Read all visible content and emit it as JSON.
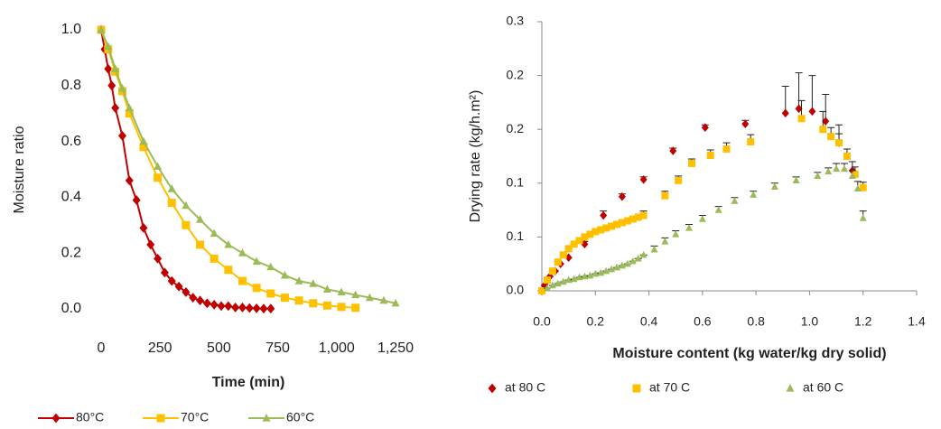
{
  "chart_data": [
    {
      "type": "line",
      "x_label": "Time (min)",
      "y_label": "Moisture ratio",
      "legend": "bottom",
      "xlim": [
        0,
        1250
      ],
      "ylim": [
        0,
        1.0
      ],
      "xticks": [
        0,
        250,
        500,
        750,
        {
          "value": 1000,
          "label": "1,000"
        },
        {
          "value": 1250,
          "label": "1,250"
        }
      ],
      "yticks": [
        {
          "value": 0,
          "label": "0.0"
        },
        0.2,
        0.4,
        0.6,
        0.8,
        {
          "value": 1,
          "label": "1.0"
        }
      ],
      "series": [
        {
          "name": "80°C",
          "color": "#c00000",
          "marker": "diamond",
          "x": [
            0,
            15,
            30,
            45,
            60,
            90,
            120,
            150,
            180,
            210,
            240,
            270,
            300,
            330,
            360,
            390,
            420,
            450,
            480,
            510,
            540,
            570,
            600,
            630,
            660,
            690,
            720
          ],
          "values": [
            1.0,
            0.93,
            0.86,
            0.8,
            0.72,
            0.62,
            0.46,
            0.39,
            0.29,
            0.23,
            0.18,
            0.13,
            0.1,
            0.08,
            0.06,
            0.04,
            0.03,
            0.02,
            0.015,
            0.01,
            0.01,
            0.005,
            0.005,
            0.003,
            0.002,
            0.001,
            0.001
          ]
        },
        {
          "name": "70°C",
          "color": "#ffc000",
          "marker": "square",
          "x": [
            0,
            30,
            60,
            90,
            120,
            180,
            240,
            300,
            360,
            420,
            480,
            540,
            600,
            660,
            720,
            780,
            840,
            900,
            960,
            1020,
            1080
          ],
          "values": [
            1.0,
            0.93,
            0.85,
            0.78,
            0.7,
            0.58,
            0.47,
            0.38,
            0.3,
            0.23,
            0.18,
            0.14,
            0.1,
            0.075,
            0.055,
            0.04,
            0.03,
            0.02,
            0.012,
            0.007,
            0.004
          ]
        },
        {
          "name": "60°C",
          "color": "#9bbb59",
          "marker": "triangle",
          "x": [
            0,
            30,
            60,
            90,
            120,
            180,
            240,
            300,
            360,
            420,
            480,
            540,
            600,
            660,
            720,
            780,
            840,
            900,
            960,
            1020,
            1080,
            1140,
            1200,
            1250
          ],
          "values": [
            1.0,
            0.94,
            0.86,
            0.79,
            0.72,
            0.6,
            0.51,
            0.43,
            0.37,
            0.32,
            0.27,
            0.23,
            0.2,
            0.17,
            0.15,
            0.12,
            0.1,
            0.09,
            0.07,
            0.06,
            0.05,
            0.04,
            0.03,
            0.02
          ]
        }
      ]
    },
    {
      "type": "scatter",
      "x_label": "Moisture content (kg water/kg dry solid)",
      "y_label": "Drying rate (kg/h.m²)",
      "legend": "bottom",
      "xlim": [
        0,
        1.4
      ],
      "ylim": [
        0,
        0.3
      ],
      "xticks": [
        {
          "value": 0,
          "label": "0.0"
        },
        0.2,
        0.4,
        0.6,
        0.8,
        {
          "value": 1,
          "label": "1.0"
        },
        1.2,
        1.4
      ],
      "yticks": [
        {
          "value": 0,
          "label": "0.0"
        },
        {
          "value": 0.06,
          "label": "0.1"
        },
        {
          "value": 0.12,
          "label": "0.1"
        },
        {
          "value": 0.18,
          "label": "0.2"
        },
        {
          "value": 0.24,
          "label": "0.2"
        },
        {
          "value": 0.3,
          "label": "0.3"
        }
      ],
      "series": [
        {
          "name": "at 80 C",
          "color": "#c00000",
          "marker": "diamond",
          "x": [
            0,
            0.01,
            0.02,
            0.03,
            0.05,
            0.07,
            0.1,
            0.16,
            0.23,
            0.3,
            0.38,
            0.49,
            0.61,
            0.76,
            0.91,
            0.96,
            1.01,
            1.06,
            1.11,
            1.16
          ],
          "values": [
            0,
            0.006,
            0.011,
            0.016,
            0.022,
            0.03,
            0.037,
            0.052,
            0.084,
            0.105,
            0.124,
            0.156,
            0.182,
            0.186,
            0.198,
            0.203,
            0.2,
            0.189,
            0.165,
            0.134
          ],
          "errors": [
            0,
            0,
            0,
            0,
            0,
            0,
            0,
            0.003,
            0.005,
            0.003,
            0.003,
            0.003,
            0.003,
            0.004,
            0.03,
            0.04,
            0.04,
            0.03,
            0.02,
            0.01
          ]
        },
        {
          "name": "at 70 C",
          "color": "#ffc000",
          "marker": "square",
          "x": [
            0,
            0.02,
            0.04,
            0.06,
            0.08,
            0.1,
            0.12,
            0.14,
            0.16,
            0.18,
            0.2,
            0.22,
            0.24,
            0.26,
            0.28,
            0.3,
            0.32,
            0.34,
            0.36,
            0.38,
            0.46,
            0.51,
            0.56,
            0.63,
            0.69,
            0.78,
            0.97,
            1.05,
            1.08,
            1.11,
            1.14,
            1.17,
            1.2
          ],
          "values": [
            0,
            0.012,
            0.022,
            0.032,
            0.04,
            0.047,
            0.052,
            0.056,
            0.06,
            0.063,
            0.066,
            0.068,
            0.07,
            0.072,
            0.074,
            0.076,
            0.078,
            0.08,
            0.082,
            0.084,
            0.106,
            0.123,
            0.142,
            0.151,
            0.158,
            0.166,
            0.192,
            0.18,
            0.172,
            0.165,
            0.15,
            0.13,
            0.115
          ],
          "errors": [
            0,
            0,
            0,
            0,
            0,
            0,
            0,
            0,
            0,
            0,
            0,
            0,
            0,
            0,
            0,
            0,
            0,
            0,
            0,
            0.005,
            0.005,
            0.005,
            0.005,
            0.006,
            0.007,
            0.008,
            0.02,
            0.02,
            0.01,
            0.01,
            0.008,
            0.008,
            0.006
          ]
        },
        {
          "name": "at 60 C",
          "color": "#9bbb59",
          "marker": "triangle",
          "x": [
            0.02,
            0.04,
            0.06,
            0.08,
            0.1,
            0.12,
            0.14,
            0.16,
            0.18,
            0.2,
            0.22,
            0.24,
            0.26,
            0.28,
            0.3,
            0.32,
            0.34,
            0.36,
            0.38,
            0.42,
            0.46,
            0.5,
            0.55,
            0.6,
            0.66,
            0.72,
            0.79,
            0.87,
            0.95,
            1.03,
            1.07,
            1.1,
            1.13,
            1.16,
            1.18,
            1.2
          ],
          "values": [
            0.003,
            0.006,
            0.008,
            0.01,
            0.012,
            0.013,
            0.015,
            0.016,
            0.017,
            0.019,
            0.02,
            0.022,
            0.024,
            0.026,
            0.028,
            0.03,
            0.033,
            0.036,
            0.04,
            0.046,
            0.055,
            0.063,
            0.07,
            0.08,
            0.09,
            0.1,
            0.107,
            0.116,
            0.123,
            0.128,
            0.133,
            0.136,
            0.136,
            0.128,
            0.114,
            0.081
          ],
          "errors": [
            0,
            0,
            0,
            0,
            0,
            0,
            0,
            0,
            0,
            0,
            0,
            0,
            0,
            0,
            0,
            0,
            0,
            0,
            0,
            0.004,
            0.004,
            0.004,
            0.004,
            0.004,
            0.004,
            0.004,
            0.004,
            0.004,
            0.004,
            0.004,
            0.004,
            0.006,
            0.006,
            0.006,
            0.008,
            0.008
          ]
        }
      ]
    }
  ]
}
